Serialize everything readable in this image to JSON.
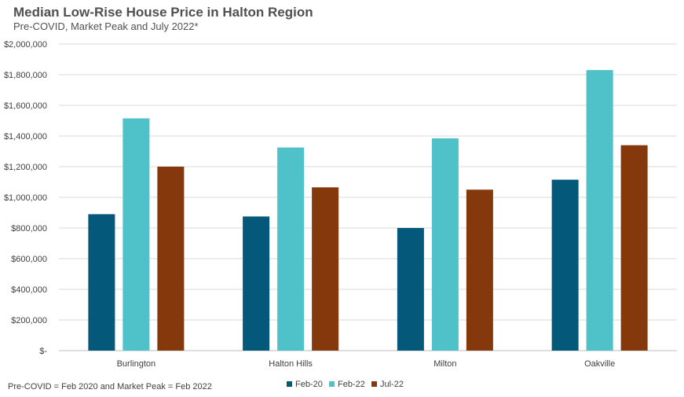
{
  "chart_data": {
    "type": "bar",
    "title": "Median Low-Rise House Price in Halton Region",
    "subtitle": "Pre-COVID, Market Peak and July 2022*",
    "categories": [
      "Burlington",
      "Halton Hills",
      "Milton",
      "Oakville"
    ],
    "series": [
      {
        "name": "Feb-20",
        "color": "#04597a",
        "values": [
          890000,
          875000,
          800000,
          1115000
        ]
      },
      {
        "name": "Feb-22",
        "color": "#4ec1c9",
        "values": [
          1515000,
          1325000,
          1385000,
          1830000
        ]
      },
      {
        "name": "Jul-22",
        "color": "#84380b",
        "values": [
          1200000,
          1065000,
          1050000,
          1340000
        ]
      }
    ],
    "ylim": [
      0,
      2000000
    ],
    "yticks": [
      0,
      200000,
      400000,
      600000,
      800000,
      1000000,
      1200000,
      1400000,
      1600000,
      1800000,
      2000000
    ],
    "ytick_labels": [
      "$-",
      "$200,000",
      "$400,000",
      "$600,000",
      "$800,000",
      "$1,000,000",
      "$1,200,000",
      "$1,400,000",
      "$1,600,000",
      "$1,800,000",
      "$2,000,000"
    ],
    "grid": true,
    "legend_position": "bottom",
    "xlabel": "",
    "ylabel": "",
    "footnote": "Pre-COVID = Feb 2020 and Market Peak = Feb 2022"
  }
}
